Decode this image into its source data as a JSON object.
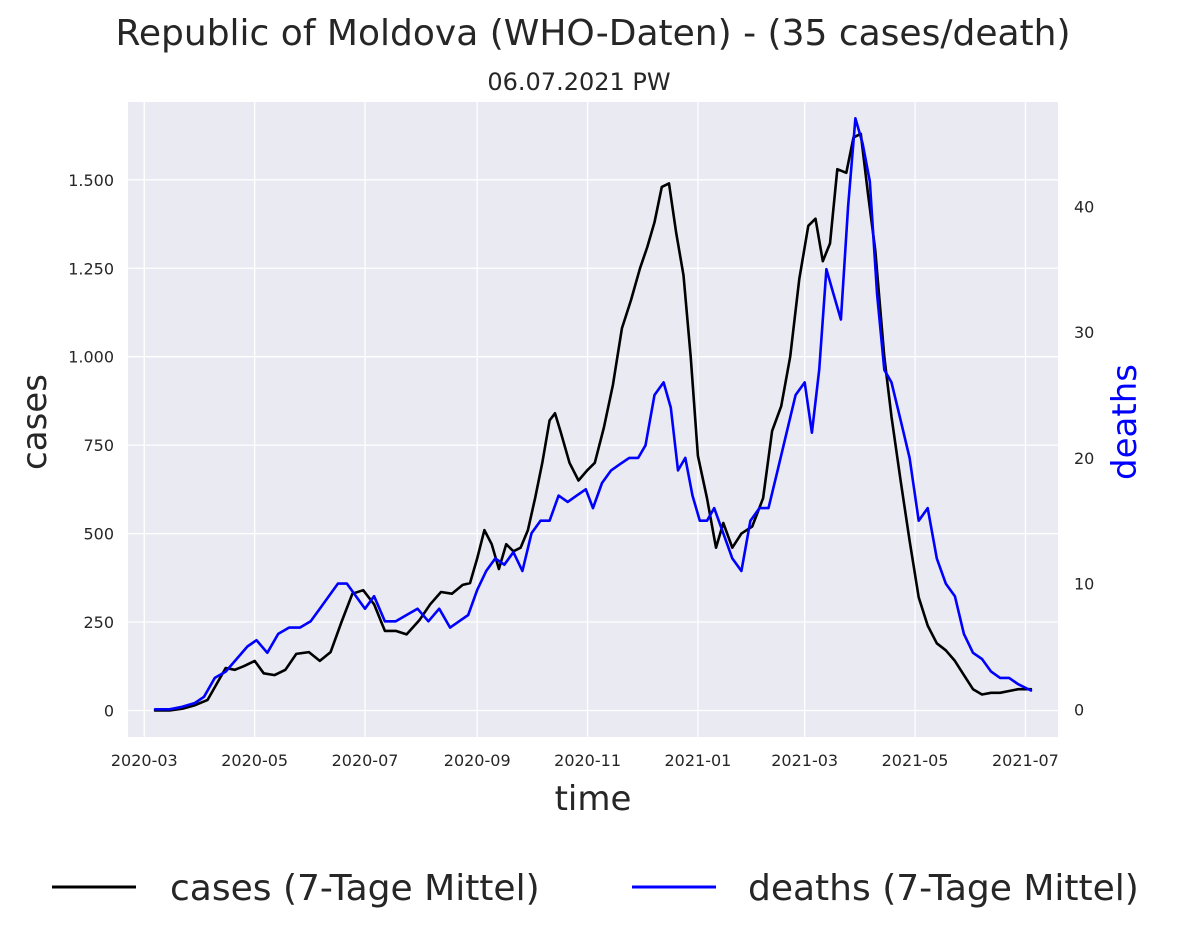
{
  "chart_data": {
    "type": "line",
    "title": "Republic of Moldova (WHO-Daten) - (35 cases/death)",
    "subtitle": "06.07.2021 PW",
    "xlabel": "time",
    "ylabel": "cases",
    "y2label": "deaths",
    "grid": true,
    "legend_position": "bottom",
    "xlim": [
      "2020-02-21",
      "2021-07-19"
    ],
    "ylim": [
      -75,
      1720
    ],
    "y2lim": [
      -2.2,
      48.3
    ],
    "x_ticks": [
      "2020-03",
      "2020-05",
      "2020-07",
      "2020-09",
      "2020-11",
      "2021-01",
      "2021-03",
      "2021-05",
      "2021-07"
    ],
    "y_ticks": [
      0,
      250,
      500,
      750,
      1000,
      1250,
      1500
    ],
    "y_tick_labels": [
      "0",
      "250",
      "500",
      "750",
      "1.000",
      "1.250",
      "1.500"
    ],
    "y2_ticks": [
      0,
      10,
      20,
      30,
      40
    ],
    "y2_tick_labels": [
      "0",
      "10",
      "20",
      "30",
      "40"
    ],
    "series": [
      {
        "name": "cases (7-Tage Mittel)",
        "axis": "left",
        "color": "#000000",
        "x": [
          "2020-03-07",
          "2020-03-15",
          "2020-03-22",
          "2020-03-29",
          "2020-04-05",
          "2020-04-10",
          "2020-04-15",
          "2020-04-20",
          "2020-04-25",
          "2020-05-01",
          "2020-05-06",
          "2020-05-12",
          "2020-05-18",
          "2020-05-24",
          "2020-05-31",
          "2020-06-06",
          "2020-06-12",
          "2020-06-18",
          "2020-06-24",
          "2020-06-30",
          "2020-07-06",
          "2020-07-12",
          "2020-07-18",
          "2020-07-24",
          "2020-07-31",
          "2020-08-06",
          "2020-08-12",
          "2020-08-18",
          "2020-08-24",
          "2020-08-28",
          "2020-09-01",
          "2020-09-05",
          "2020-09-09",
          "2020-09-13",
          "2020-09-17",
          "2020-09-21",
          "2020-09-25",
          "2020-09-29",
          "2020-10-03",
          "2020-10-07",
          "2020-10-11",
          "2020-10-14",
          "2020-10-17",
          "2020-10-22",
          "2020-10-27",
          "2020-11-01",
          "2020-11-05",
          "2020-11-10",
          "2020-11-15",
          "2020-11-20",
          "2020-11-25",
          "2020-11-30",
          "2020-12-04",
          "2020-12-08",
          "2020-12-12",
          "2020-12-16",
          "2020-12-20",
          "2020-12-24",
          "2020-12-28",
          "2021-01-01",
          "2021-01-06",
          "2021-01-11",
          "2021-01-15",
          "2021-01-20",
          "2021-01-25",
          "2021-01-31",
          "2021-02-06",
          "2021-02-11",
          "2021-02-16",
          "2021-02-21",
          "2021-02-26",
          "2021-03-03",
          "2021-03-07",
          "2021-03-11",
          "2021-03-15",
          "2021-03-19",
          "2021-03-24",
          "2021-03-28",
          "2021-04-01",
          "2021-04-05",
          "2021-04-09",
          "2021-04-14",
          "2021-04-18",
          "2021-04-23",
          "2021-04-28",
          "2021-05-03",
          "2021-05-08",
          "2021-05-13",
          "2021-05-18",
          "2021-05-23",
          "2021-05-28",
          "2021-06-02",
          "2021-06-07",
          "2021-06-12",
          "2021-06-17",
          "2021-06-22",
          "2021-06-27",
          "2021-07-04"
        ],
        "values": [
          0,
          0,
          5,
          15,
          30,
          75,
          120,
          115,
          125,
          140,
          105,
          100,
          115,
          160,
          165,
          140,
          165,
          250,
          330,
          340,
          300,
          225,
          225,
          215,
          255,
          300,
          335,
          330,
          355,
          360,
          430,
          510,
          470,
          400,
          470,
          450,
          460,
          510,
          600,
          700,
          820,
          840,
          790,
          700,
          650,
          680,
          700,
          800,
          920,
          1080,
          1160,
          1250,
          1310,
          1380,
          1480,
          1490,
          1350,
          1230,
          1000,
          720,
          600,
          460,
          530,
          460,
          500,
          520,
          600,
          790,
          860,
          1000,
          1220,
          1370,
          1390,
          1270,
          1320,
          1530,
          1520,
          1620,
          1630,
          1460,
          1300,
          1000,
          830,
          650,
          480,
          320,
          240,
          190,
          170,
          140,
          100,
          60,
          45,
          50,
          50,
          55,
          60,
          60
        ]
      },
      {
        "name": "deaths (7-Tage Mittel)",
        "axis": "right",
        "color": "#0000ff",
        "x": [
          "2020-03-07",
          "2020-03-15",
          "2020-03-22",
          "2020-03-29",
          "2020-04-03",
          "2020-04-09",
          "2020-04-15",
          "2020-04-21",
          "2020-04-27",
          "2020-05-02",
          "2020-05-08",
          "2020-05-14",
          "2020-05-20",
          "2020-05-26",
          "2020-06-01",
          "2020-06-06",
          "2020-06-11",
          "2020-06-16",
          "2020-06-21",
          "2020-06-26",
          "2020-07-01",
          "2020-07-06",
          "2020-07-12",
          "2020-07-18",
          "2020-07-24",
          "2020-07-30",
          "2020-08-05",
          "2020-08-11",
          "2020-08-17",
          "2020-08-22",
          "2020-08-27",
          "2020-09-01",
          "2020-09-06",
          "2020-09-11",
          "2020-09-16",
          "2020-09-21",
          "2020-09-26",
          "2020-10-01",
          "2020-10-06",
          "2020-10-11",
          "2020-10-16",
          "2020-10-21",
          "2020-10-26",
          "2020-10-31",
          "2020-11-04",
          "2020-11-09",
          "2020-11-14",
          "2020-11-19",
          "2020-11-24",
          "2020-11-29",
          "2020-12-03",
          "2020-12-08",
          "2020-12-13",
          "2020-12-17",
          "2020-12-21",
          "2020-12-25",
          "2020-12-29",
          "2021-01-02",
          "2021-01-06",
          "2021-01-10",
          "2021-01-15",
          "2021-01-20",
          "2021-01-25",
          "2021-01-30",
          "2021-02-04",
          "2021-02-09",
          "2021-02-14",
          "2021-02-19",
          "2021-02-24",
          "2021-03-01",
          "2021-03-05",
          "2021-03-09",
          "2021-03-13",
          "2021-03-17",
          "2021-03-21",
          "2021-03-25",
          "2021-03-29",
          "2021-04-02",
          "2021-04-06",
          "2021-04-10",
          "2021-04-14",
          "2021-04-18",
          "2021-04-23",
          "2021-04-28",
          "2021-05-03",
          "2021-05-08",
          "2021-05-13",
          "2021-05-18",
          "2021-05-23",
          "2021-05-28",
          "2021-06-02",
          "2021-06-07",
          "2021-06-12",
          "2021-06-17",
          "2021-06-22",
          "2021-06-27",
          "2021-07-04"
        ],
        "values": [
          0,
          0,
          0.2,
          0.5,
          1,
          2.5,
          3,
          4,
          5,
          5.5,
          4.5,
          6,
          6.5,
          6.5,
          7,
          8,
          9,
          10,
          10,
          9,
          8,
          9,
          7,
          7,
          7.5,
          8,
          7,
          8,
          6.5,
          7,
          7.5,
          9.5,
          11,
          12,
          11.5,
          12.5,
          11,
          14,
          15,
          15,
          17,
          16.5,
          17,
          17.5,
          16,
          18,
          19,
          19.5,
          20,
          20,
          21,
          25,
          26,
          24,
          19,
          20,
          17,
          15,
          15,
          16,
          14,
          12,
          11,
          15,
          16,
          16,
          19,
          22,
          25,
          26,
          22,
          27,
          35,
          33,
          31,
          40,
          47,
          45,
          42,
          33,
          27,
          26,
          23,
          20,
          15,
          16,
          12,
          10,
          9,
          6,
          4.5,
          4,
          3,
          2.5,
          2.5,
          2,
          1.5
        ]
      }
    ]
  }
}
